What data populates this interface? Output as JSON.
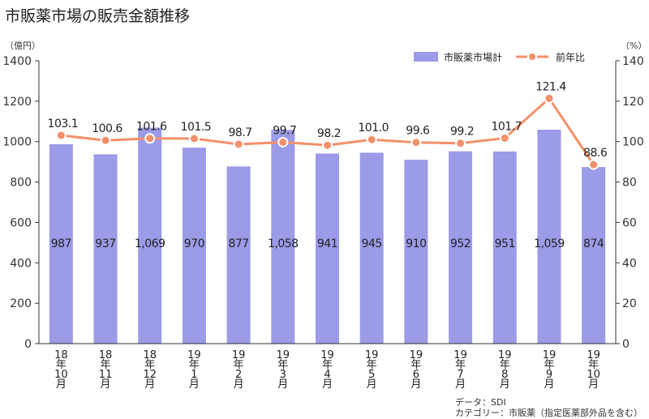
{
  "title": "市販薬市場の販売金額推移",
  "units": {
    "left": "（億円）",
    "right": "（%）"
  },
  "source": {
    "line1": "データ：SDI",
    "line2": "カテゴリー：市販薬（指定医薬部外品を含む）"
  },
  "colors": {
    "bar": "#9b9be8",
    "line": "#f4906a",
    "axis": "#333333"
  },
  "chart_data": {
    "type": "bar",
    "title": "市販薬市場の販売金額推移",
    "categories": [
      "18年10月",
      "18年11月",
      "18年12月",
      "19年1月",
      "19年2月",
      "19年3月",
      "19年4月",
      "19年5月",
      "19年6月",
      "19年7月",
      "19年8月",
      "19年9月",
      "19年10月"
    ],
    "category_labels": [
      [
        "18",
        "年",
        "10",
        "月"
      ],
      [
        "18",
        "年",
        "11",
        "月"
      ],
      [
        "18",
        "年",
        "12",
        "月"
      ],
      [
        "19",
        "年",
        "1",
        "月"
      ],
      [
        "19",
        "年",
        "2",
        "月"
      ],
      [
        "19",
        "年",
        "3",
        "月"
      ],
      [
        "19",
        "年",
        "4",
        "月"
      ],
      [
        "19",
        "年",
        "5",
        "月"
      ],
      [
        "19",
        "年",
        "6",
        "月"
      ],
      [
        "19",
        "年",
        "7",
        "月"
      ],
      [
        "19",
        "年",
        "8",
        "月"
      ],
      [
        "19",
        "年",
        "9",
        "月"
      ],
      [
        "19",
        "年",
        "10",
        "月"
      ]
    ],
    "series": [
      {
        "name": "市販薬市場計",
        "type": "bar",
        "axis": "left",
        "values": [
          987,
          937,
          1069,
          970,
          877,
          1058,
          941,
          945,
          910,
          952,
          951,
          1059,
          874
        ],
        "labels": [
          "987",
          "937",
          "1,069",
          "970",
          "877",
          "1,058",
          "941",
          "945",
          "910",
          "952",
          "951",
          "1,059",
          "874"
        ]
      },
      {
        "name": "前年比",
        "type": "line",
        "axis": "right",
        "values": [
          103.1,
          100.6,
          101.6,
          101.5,
          98.7,
          99.7,
          98.2,
          101.0,
          99.6,
          99.2,
          101.7,
          121.4,
          88.6
        ],
        "labels": [
          "103.1",
          "100.6",
          "101.6",
          "101.5",
          "98.7",
          "99.7",
          "98.2",
          "101.0",
          "99.6",
          "99.2",
          "101.7",
          "121.4",
          "88.6"
        ]
      }
    ],
    "y_left": {
      "range": [
        0,
        1400
      ],
      "ticks": [
        "0",
        "200",
        "400",
        "600",
        "800",
        "1000",
        "1200",
        "1400"
      ]
    },
    "y_right": {
      "range": [
        0,
        140
      ],
      "ticks": [
        "0",
        "20",
        "40",
        "60",
        "80",
        "100",
        "120",
        "140"
      ]
    },
    "grid": false,
    "legend_position": "top-right"
  }
}
